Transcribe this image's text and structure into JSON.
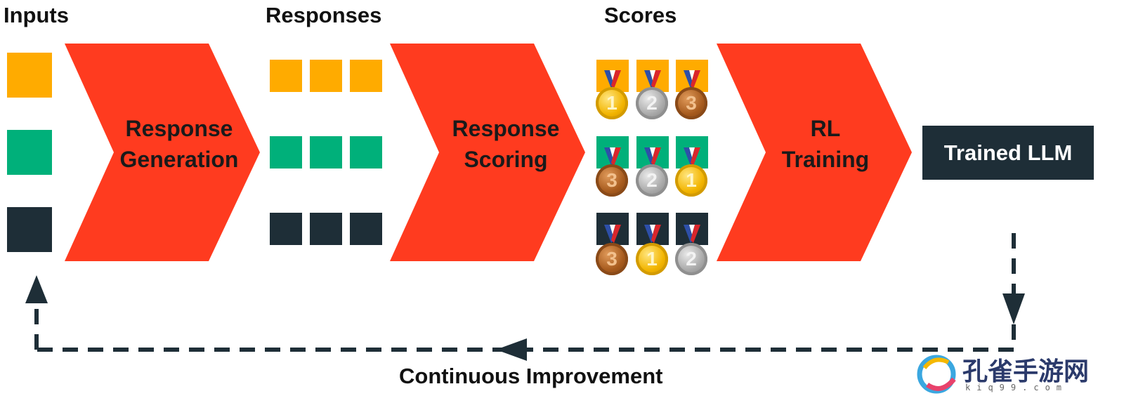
{
  "headers": {
    "inputs": "Inputs",
    "responses": "Responses",
    "scores": "Scores"
  },
  "steps": {
    "generation": {
      "line1": "Response",
      "line2": "Generation"
    },
    "scoring": {
      "line1": "Response",
      "line2": "Scoring"
    },
    "training": {
      "line1": "RL",
      "line2": "Training"
    }
  },
  "output": {
    "label": "Trained LLM"
  },
  "loop": {
    "label": "Continuous Improvement"
  },
  "colors": {
    "orange": "#ffab00",
    "green": "#00b07a",
    "dark": "#1e2e37",
    "chevron": "#ff3b1f",
    "arrow": "#1e2e37"
  },
  "scores": {
    "orange_row": [
      "1",
      "2",
      "3"
    ],
    "green_row": [
      "3",
      "2",
      "1"
    ],
    "dark_row": [
      "3",
      "1",
      "2"
    ]
  },
  "watermark": {
    "text": "孔雀手游网",
    "sub": "kiq99.com"
  }
}
